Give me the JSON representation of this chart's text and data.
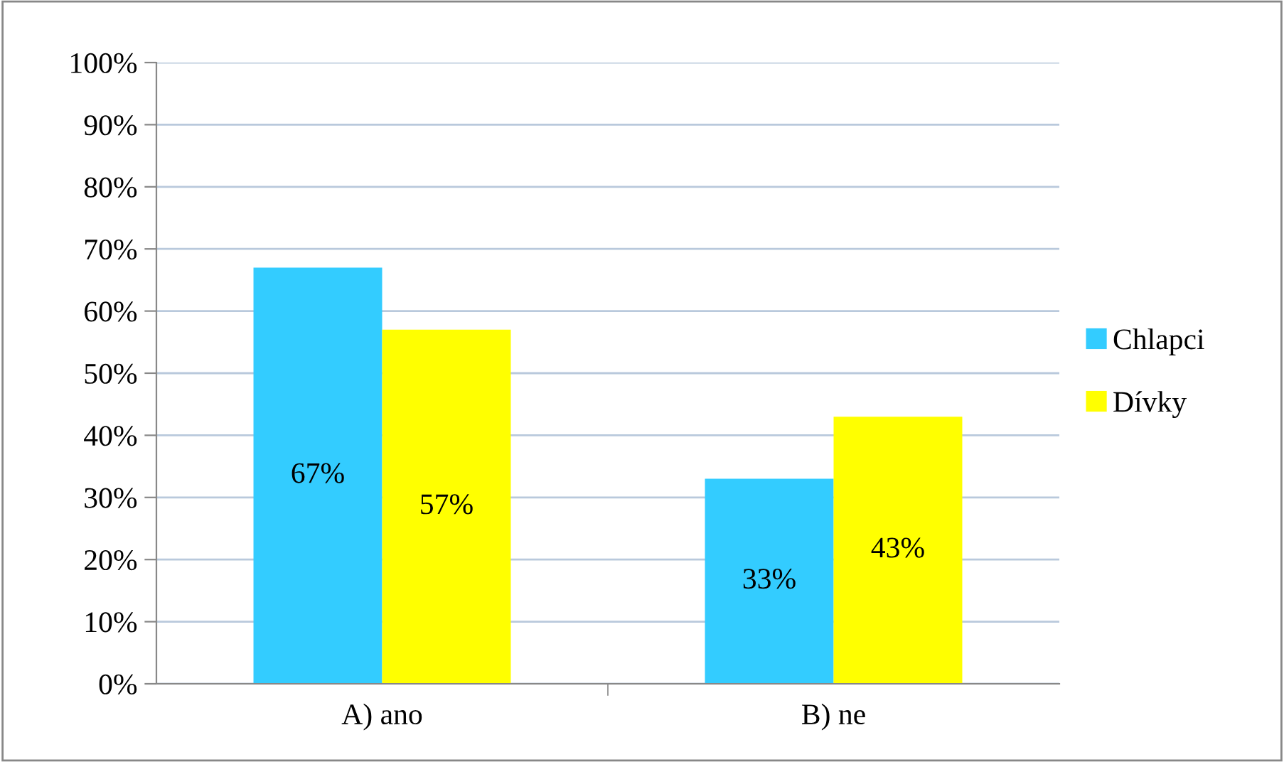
{
  "chart_data": {
    "type": "bar",
    "categories": [
      "A) ano",
      "B) ne"
    ],
    "series": [
      {
        "name": "Chlapci",
        "color": "#33ccff",
        "values": [
          67,
          33
        ],
        "value_labels": [
          "67%",
          "33%"
        ]
      },
      {
        "name": "Dívky",
        "color": "#ffff00",
        "values": [
          57,
          43
        ],
        "value_labels": [
          "57%",
          "43%"
        ]
      }
    ],
    "ylim": [
      0,
      100
    ],
    "yticks": [
      {
        "value": 0,
        "label": "0%"
      },
      {
        "value": 10,
        "label": "10%"
      },
      {
        "value": 20,
        "label": "20%"
      },
      {
        "value": 30,
        "label": "30%"
      },
      {
        "value": 40,
        "label": "40%"
      },
      {
        "value": 50,
        "label": "50%"
      },
      {
        "value": 60,
        "label": "60%"
      },
      {
        "value": 70,
        "label": "70%"
      },
      {
        "value": 80,
        "label": "80%"
      },
      {
        "value": 90,
        "label": "90%"
      },
      {
        "value": 100,
        "label": "100%"
      }
    ],
    "grid": "y",
    "legend": "right"
  }
}
